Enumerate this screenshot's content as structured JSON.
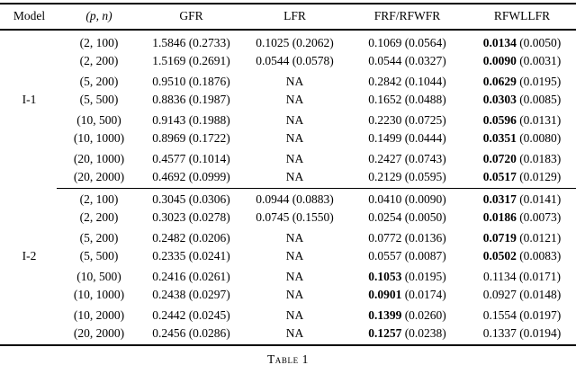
{
  "page": {
    "background": "#ffffff",
    "text_color": "#000000"
  },
  "table": {
    "caption": "Table 1",
    "columns": [
      {
        "key": "model",
        "label": "Model"
      },
      {
        "key": "pn",
        "label": "(p, n)"
      },
      {
        "key": "gfr",
        "label": "GFR"
      },
      {
        "key": "lfr",
        "label": "LFR"
      },
      {
        "key": "frf_rfwfr",
        "label": "FRF/RFWFR"
      },
      {
        "key": "rfwllfr",
        "label": "RFWLLFR"
      }
    ],
    "sections": [
      {
        "model": "I-1",
        "rows": [
          {
            "pn": "(2, 100)",
            "cells": [
              {
                "v": "1.5846",
                "se": "0.2733",
                "bold": false
              },
              {
                "v": "0.1025",
                "se": "0.2062",
                "bold": false
              },
              {
                "v": "0.1069",
                "se": "0.0564",
                "bold": false
              },
              {
                "v": "0.0134",
                "se": "0.0050",
                "bold": true
              }
            ]
          },
          {
            "pn": "(2, 200)",
            "cells": [
              {
                "v": "1.5169",
                "se": "0.2691",
                "bold": false
              },
              {
                "v": "0.0544",
                "se": "0.0578",
                "bold": false
              },
              {
                "v": "0.0544",
                "se": "0.0327",
                "bold": false
              },
              {
                "v": "0.0090",
                "se": "0.0031",
                "bold": true
              }
            ]
          },
          {
            "pn": "(5, 200)",
            "cells": [
              {
                "v": "0.9510",
                "se": "0.1876",
                "bold": false
              },
              {
                "v": "NA",
                "se": "",
                "bold": false
              },
              {
                "v": "0.2842",
                "se": "0.1044",
                "bold": false
              },
              {
                "v": "0.0629",
                "se": "0.0195",
                "bold": true
              }
            ]
          },
          {
            "pn": "(5, 500)",
            "cells": [
              {
                "v": "0.8836",
                "se": "0.1987",
                "bold": false
              },
              {
                "v": "NA",
                "se": "",
                "bold": false
              },
              {
                "v": "0.1652",
                "se": "0.0488",
                "bold": false
              },
              {
                "v": "0.0303",
                "se": "0.0085",
                "bold": true
              }
            ]
          },
          {
            "pn": "(10, 500)",
            "cells": [
              {
                "v": "0.9143",
                "se": "0.1988",
                "bold": false
              },
              {
                "v": "NA",
                "se": "",
                "bold": false
              },
              {
                "v": "0.2230",
                "se": "0.0725",
                "bold": false
              },
              {
                "v": "0.0596",
                "se": "0.0131",
                "bold": true
              }
            ]
          },
          {
            "pn": "(10, 1000)",
            "cells": [
              {
                "v": "0.8969",
                "se": "0.1722",
                "bold": false
              },
              {
                "v": "NA",
                "se": "",
                "bold": false
              },
              {
                "v": "0.1499",
                "se": "0.0444",
                "bold": false
              },
              {
                "v": "0.0351",
                "se": "0.0080",
                "bold": true
              }
            ]
          },
          {
            "pn": "(20, 1000)",
            "cells": [
              {
                "v": "0.4577",
                "se": "0.1014",
                "bold": false
              },
              {
                "v": "NA",
                "se": "",
                "bold": false
              },
              {
                "v": "0.2427",
                "se": "0.0743",
                "bold": false
              },
              {
                "v": "0.0720",
                "se": "0.0183",
                "bold": true
              }
            ]
          },
          {
            "pn": "(20, 2000)",
            "cells": [
              {
                "v": "0.4692",
                "se": "0.0999",
                "bold": false
              },
              {
                "v": "NA",
                "se": "",
                "bold": false
              },
              {
                "v": "0.2129",
                "se": "0.0595",
                "bold": false
              },
              {
                "v": "0.0517",
                "se": "0.0129",
                "bold": true
              }
            ]
          }
        ]
      },
      {
        "model": "I-2",
        "rows": [
          {
            "pn": "(2, 100)",
            "cells": [
              {
                "v": "0.3045",
                "se": "0.0306",
                "bold": false
              },
              {
                "v": "0.0944",
                "se": "0.0883",
                "bold": false
              },
              {
                "v": "0.0410",
                "se": "0.0090",
                "bold": false
              },
              {
                "v": "0.0317",
                "se": "0.0141",
                "bold": true
              }
            ]
          },
          {
            "pn": "(2, 200)",
            "cells": [
              {
                "v": "0.3023",
                "se": "0.0278",
                "bold": false
              },
              {
                "v": "0.0745",
                "se": "0.1550",
                "bold": false
              },
              {
                "v": "0.0254",
                "se": "0.0050",
                "bold": false
              },
              {
                "v": "0.0186",
                "se": "0.0073",
                "bold": true
              }
            ]
          },
          {
            "pn": "(5, 200)",
            "cells": [
              {
                "v": "0.2482",
                "se": "0.0206",
                "bold": false
              },
              {
                "v": "NA",
                "se": "",
                "bold": false
              },
              {
                "v": "0.0772",
                "se": "0.0136",
                "bold": false
              },
              {
                "v": "0.0719",
                "se": "0.0121",
                "bold": true
              }
            ]
          },
          {
            "pn": "(5, 500)",
            "cells": [
              {
                "v": "0.2335",
                "se": "0.0241",
                "bold": false
              },
              {
                "v": "NA",
                "se": "",
                "bold": false
              },
              {
                "v": "0.0557",
                "se": "0.0087",
                "bold": false
              },
              {
                "v": "0.0502",
                "se": "0.0083",
                "bold": true
              }
            ]
          },
          {
            "pn": "(10, 500)",
            "cells": [
              {
                "v": "0.2416",
                "se": "0.0261",
                "bold": false
              },
              {
                "v": "NA",
                "se": "",
                "bold": false
              },
              {
                "v": "0.1053",
                "se": "0.0195",
                "bold": true
              },
              {
                "v": "0.1134",
                "se": "0.0171",
                "bold": false
              }
            ]
          },
          {
            "pn": "(10, 1000)",
            "cells": [
              {
                "v": "0.2438",
                "se": "0.0297",
                "bold": false
              },
              {
                "v": "NA",
                "se": "",
                "bold": false
              },
              {
                "v": "0.0901",
                "se": "0.0174",
                "bold": true
              },
              {
                "v": "0.0927",
                "se": "0.0148",
                "bold": false
              }
            ]
          },
          {
            "pn": "(10, 2000)",
            "cells": [
              {
                "v": "0.2442",
                "se": "0.0245",
                "bold": false
              },
              {
                "v": "NA",
                "se": "",
                "bold": false
              },
              {
                "v": "0.1399",
                "se": "0.0260",
                "bold": true
              },
              {
                "v": "0.1554",
                "se": "0.0197",
                "bold": false
              }
            ]
          },
          {
            "pn": "(20, 2000)",
            "cells": [
              {
                "v": "0.2456",
                "se": "0.0286",
                "bold": false
              },
              {
                "v": "NA",
                "se": "",
                "bold": false
              },
              {
                "v": "0.1257",
                "se": "0.0238",
                "bold": true
              },
              {
                "v": "0.1337",
                "se": "0.0194",
                "bold": false
              }
            ]
          }
        ]
      }
    ]
  }
}
